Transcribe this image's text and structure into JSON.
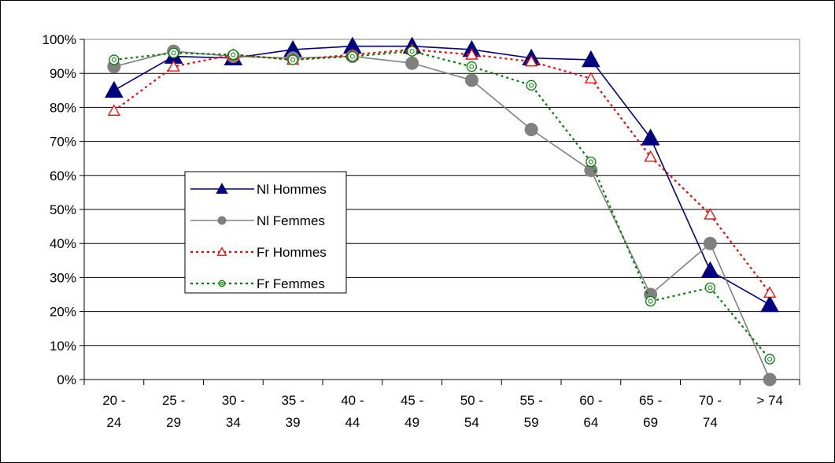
{
  "chart_data": {
    "type": "line",
    "title": "",
    "xlabel": "",
    "ylabel": "",
    "ylim": [
      0,
      100
    ],
    "grid": "horizontal",
    "legend_position": "left-center",
    "categories": [
      [
        "20 -",
        "24"
      ],
      [
        "25 -",
        "29"
      ],
      [
        "30 -",
        "34"
      ],
      [
        "35 -",
        "39"
      ],
      [
        "40 -",
        "44"
      ],
      [
        "45 -",
        "49"
      ],
      [
        "50 -",
        "54"
      ],
      [
        "55 -",
        "59"
      ],
      [
        "60 -",
        "64"
      ],
      [
        "65 -",
        "69"
      ],
      [
        "70 -",
        "74"
      ],
      [
        "> 74",
        ""
      ]
    ],
    "yticks": [
      "0%",
      "10%",
      "20%",
      "30%",
      "40%",
      "50%",
      "60%",
      "70%",
      "80%",
      "90%",
      "100%"
    ],
    "series": [
      {
        "name": "Nl Hommes",
        "color": "#000080",
        "marker": "triangle-filled",
        "dash": "solid",
        "values": [
          85,
          95,
          94.5,
          97,
          98,
          98,
          97,
          94.5,
          94,
          71,
          32,
          22
        ]
      },
      {
        "name": "Nl Femmes",
        "color": "#808080",
        "marker": "circle-filled",
        "dash": "solid",
        "values": [
          92,
          96.5,
          95,
          94.5,
          95,
          93,
          88,
          73.5,
          61.5,
          25,
          40,
          0
        ]
      },
      {
        "name": "Fr Hommes",
        "color": "#ff0000",
        "marker": "triangle-open",
        "dash": "dotted",
        "values": [
          79,
          92,
          95.5,
          94,
          95.5,
          97,
          95.5,
          93.5,
          88.5,
          65.5,
          48.5,
          25.5
        ]
      },
      {
        "name": "Fr Femmes",
        "color": "#008000",
        "marker": "circle-open",
        "dash": "dotted",
        "values": [
          94,
          96,
          95.5,
          94,
          95,
          96.5,
          92,
          86.5,
          64,
          23,
          27,
          6
        ]
      }
    ]
  }
}
